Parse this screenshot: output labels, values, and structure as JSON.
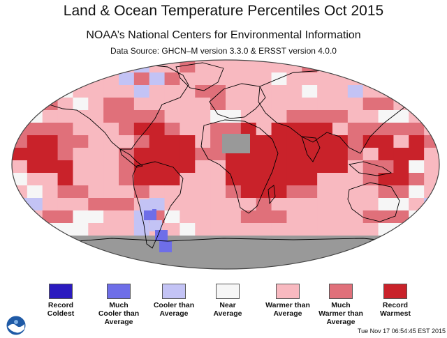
{
  "header": {
    "title": "Land & Ocean Temperature Percentiles Oct 2015",
    "subtitle": "NOAA’s National Centers for Environmental Information",
    "source": "Data Source: GHCN–M version 3.3.0 & ERSST version 4.0.0"
  },
  "map": {
    "projection": "robinson",
    "no_data_color": "#999999",
    "land_outline_color": "#000000"
  },
  "legend": {
    "items": [
      {
        "label": "Record\nColdest",
        "color": "#2b1bbf"
      },
      {
        "label": "Much\nCooler than\nAverage",
        "color": "#6e6ee8"
      },
      {
        "label": "Cooler than\nAverage",
        "color": "#c3c3f5"
      },
      {
        "label": "Near\nAverage",
        "color": "#f6f6f6"
      },
      {
        "label": "Warmer than\nAverage",
        "color": "#f8b9c0"
      },
      {
        "label": "Much\nWarmer than\nAverage",
        "color": "#e0707a"
      },
      {
        "label": "Record\nWarmest",
        "color": "#c9222a"
      }
    ]
  },
  "footer": {
    "timestamp": "Tue Nov 17 06:54:45 EST 2015",
    "logo_icon": "noaa-logo-icon"
  }
}
